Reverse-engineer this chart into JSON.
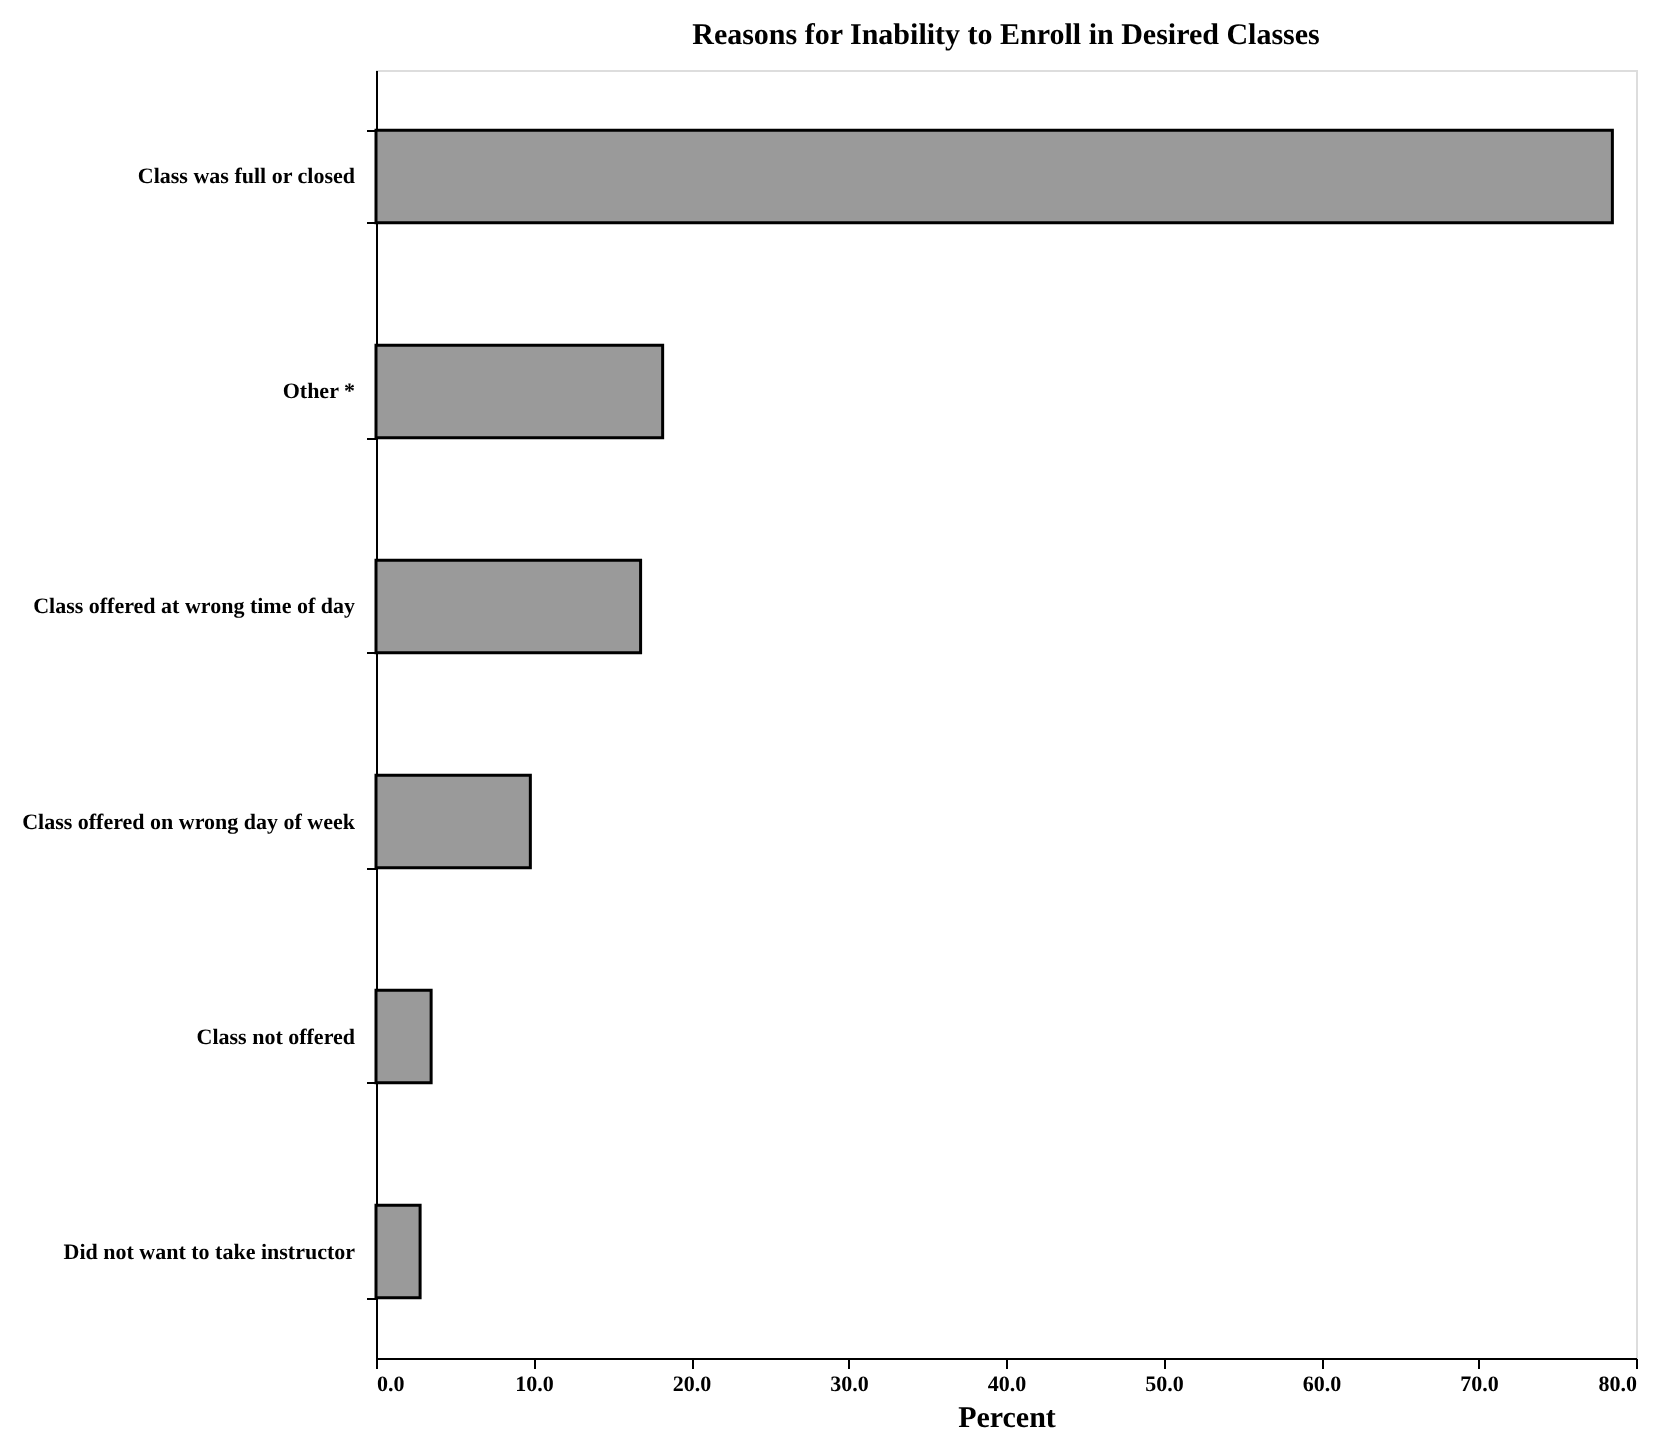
{
  "chart_data": {
    "type": "bar",
    "orientation": "horizontal",
    "title": "Reasons for Inability to Enroll in Desired Classes",
    "xlabel": "Percent",
    "categories": [
      "Class was full or closed",
      "Other *",
      "Class offered at wrong time of day",
      "Class offered on wrong day of week",
      "Class not offered",
      "Did not want to take instructor"
    ],
    "values": [
      78.5,
      18.2,
      16.8,
      9.8,
      3.5,
      2.8
    ],
    "color": "#9a9a9a",
    "xlim": [
      0,
      80
    ],
    "xticks": [
      {
        "value": 0,
        "label": "0.0"
      },
      {
        "value": 10,
        "label": "10.0"
      },
      {
        "value": 20,
        "label": "20.0"
      },
      {
        "value": 30,
        "label": "30.0"
      },
      {
        "value": 40,
        "label": "40.0"
      },
      {
        "value": 50,
        "label": "50.0"
      },
      {
        "value": 60,
        "label": "60.0"
      },
      {
        "value": 70,
        "label": "70.0"
      },
      {
        "value": 80,
        "label": "80.0"
      }
    ],
    "grid": false
  }
}
